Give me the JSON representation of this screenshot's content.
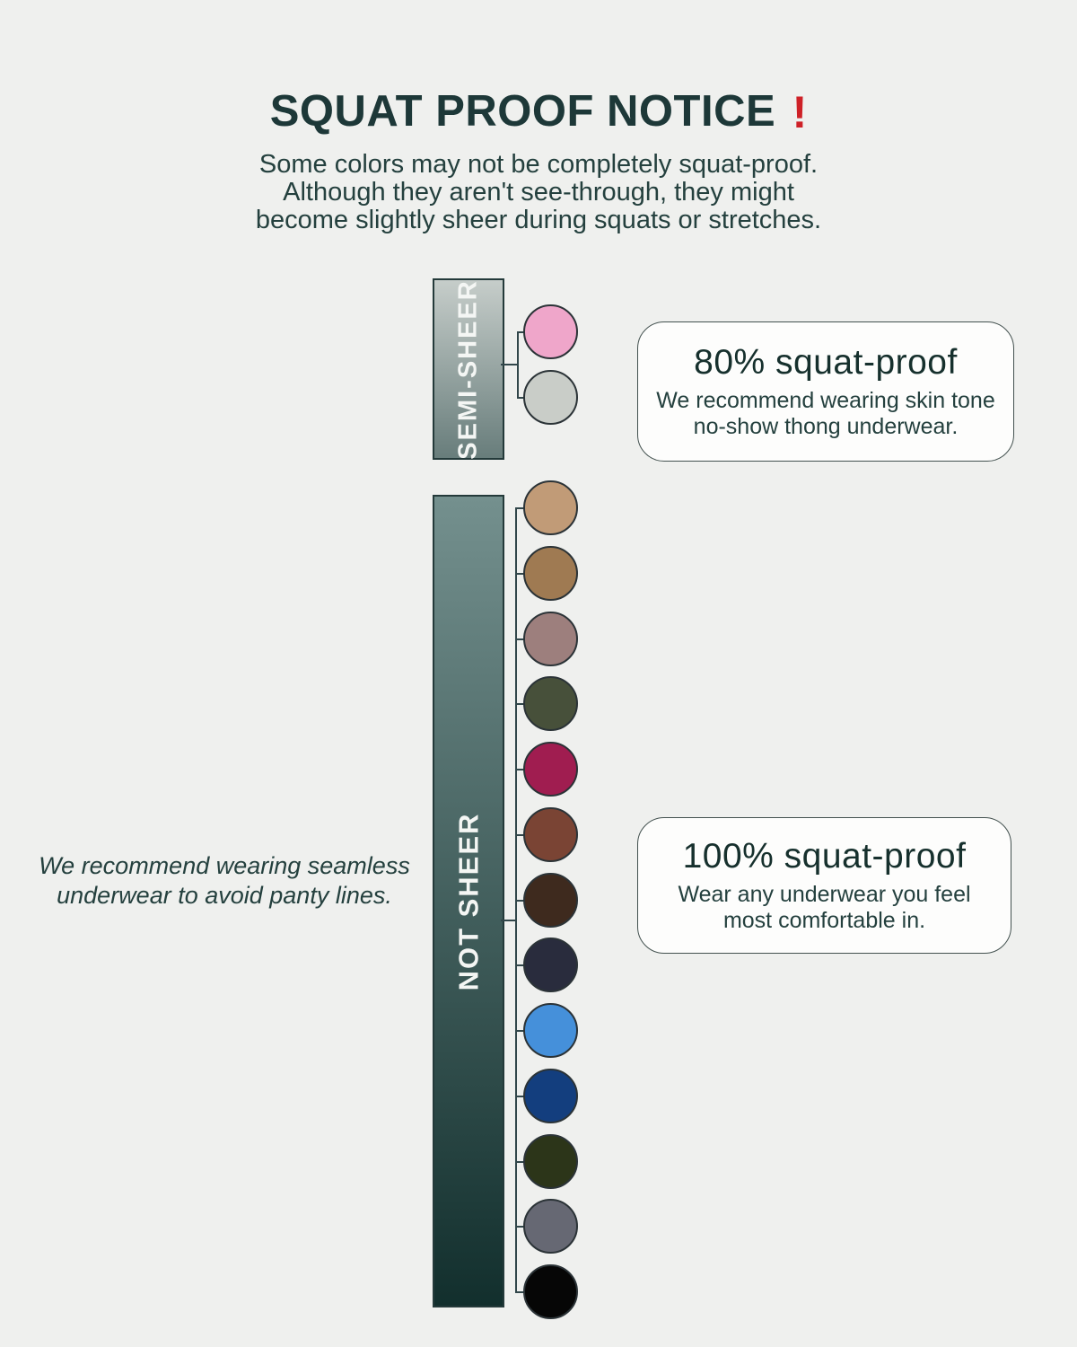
{
  "page": {
    "background": "#eff0ee"
  },
  "palette": {
    "heading_text": "#1d3838",
    "body_text": "#24403e",
    "exclaim_red": "#ce2127",
    "connector_line": "#31464a",
    "box_border": "#43514f",
    "box_bg": "#fdfdfc",
    "bar_border": "#243a3a",
    "swatch_border": "#2b3337"
  },
  "header": {
    "title": "SQUAT PROOF NOTICE",
    "title_mark": "!",
    "subtitle_lines": [
      "Some colors may not be completely squat-proof.",
      "Although they aren't see-through, they might",
      "become slightly sheer during squats or stretches."
    ]
  },
  "side_note": {
    "line1": "We recommend wearing seamless",
    "line2": "underwear to avoid panty lines."
  },
  "semi_sheer": {
    "label": "SEMI-SHEER",
    "bar_gradient_top": "#c6cdca",
    "bar_gradient_bottom": "#687d7b",
    "colors": [
      {
        "name": "pink",
        "hex": "#efa6ca"
      },
      {
        "name": "light-gray",
        "hex": "#c9cdc8"
      }
    ],
    "callout": {
      "title": "80% squat-proof",
      "body_line1": "We recommend wearing skin tone",
      "body_line2": "no-show thong underwear."
    }
  },
  "not_sheer": {
    "label": "NOT SHEER",
    "bar_gradient_top": "#74908e",
    "bar_gradient_bottom": "#122f2d",
    "colors": [
      {
        "name": "tan",
        "hex": "#c19b77"
      },
      {
        "name": "brown",
        "hex": "#9f7a52"
      },
      {
        "name": "rose-taupe",
        "hex": "#9d7f7d"
      },
      {
        "name": "olive",
        "hex": "#47503a"
      },
      {
        "name": "burgundy",
        "hex": "#a01d50"
      },
      {
        "name": "sienna",
        "hex": "#7a4434"
      },
      {
        "name": "dark-brown",
        "hex": "#3e2a1e"
      },
      {
        "name": "dark-navy",
        "hex": "#292c3d"
      },
      {
        "name": "sky-blue",
        "hex": "#4590da"
      },
      {
        "name": "navy-blue",
        "hex": "#133e7e"
      },
      {
        "name": "army-green",
        "hex": "#2c3519"
      },
      {
        "name": "gray",
        "hex": "#666873"
      },
      {
        "name": "black",
        "hex": "#060606"
      }
    ],
    "callout": {
      "title": "100% squat-proof",
      "body_line1": "Wear any underwear you feel",
      "body_line2": "most comfortable in."
    }
  }
}
